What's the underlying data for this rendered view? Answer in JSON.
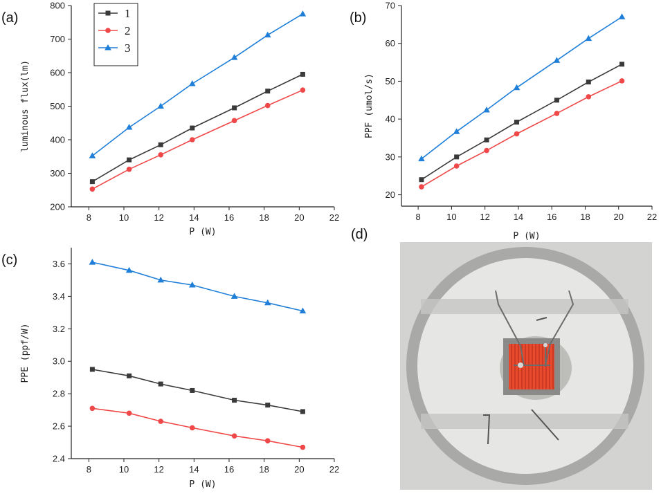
{
  "panel_labels": {
    "a": "(a)",
    "b": "(b)",
    "c": "(c)",
    "d": "(d)"
  },
  "colors": {
    "s1": "#3a3a3a",
    "s2": "#f04848",
    "s3": "#1f7fd8"
  },
  "chart_data": [
    {
      "id": "a",
      "type": "line",
      "title": "",
      "xlabel": "P (W)",
      "ylabel": "luminous flux(lm)",
      "xlim": [
        7,
        22
      ],
      "ylim": [
        200,
        800
      ],
      "xticks": [
        8,
        10,
        12,
        14,
        16,
        18,
        20,
        22
      ],
      "yticks": [
        200,
        300,
        400,
        500,
        600,
        700,
        800
      ],
      "x": [
        8.2,
        10.3,
        12.1,
        13.9,
        16.3,
        18.2,
        20.2
      ],
      "legend": {
        "position": "top-left",
        "entries": [
          "1",
          "2",
          "3"
        ]
      },
      "series": [
        {
          "name": "1",
          "marker": "square",
          "color": "#3a3a3a",
          "values": [
            275,
            340,
            385,
            435,
            495,
            545,
            595
          ]
        },
        {
          "name": "2",
          "marker": "circle",
          "color": "#f04848",
          "values": [
            253,
            312,
            355,
            400,
            457,
            502,
            548
          ]
        },
        {
          "name": "3",
          "marker": "triangle",
          "color": "#1f7fd8",
          "values": [
            352,
            437,
            500,
            567,
            645,
            712,
            775
          ]
        }
      ]
    },
    {
      "id": "b",
      "type": "line",
      "title": "",
      "xlabel": "P (W)",
      "ylabel": "PPF (umol/s)",
      "xlim": [
        7,
        22
      ],
      "ylim": [
        17,
        70
      ],
      "xticks": [
        8,
        10,
        12,
        14,
        16,
        18,
        20,
        22
      ],
      "yticks": [
        20,
        30,
        40,
        50,
        60,
        70
      ],
      "x": [
        8.2,
        10.3,
        12.1,
        13.9,
        16.3,
        18.2,
        20.2
      ],
      "series": [
        {
          "name": "1",
          "marker": "square",
          "color": "#3a3a3a",
          "values": [
            24.0,
            30.0,
            34.5,
            39.2,
            45.0,
            49.8,
            54.5
          ]
        },
        {
          "name": "2",
          "marker": "circle",
          "color": "#f04848",
          "values": [
            22.1,
            27.6,
            31.7,
            36.1,
            41.5,
            45.9,
            50.1
          ]
        },
        {
          "name": "3",
          "marker": "triangle",
          "color": "#1f7fd8",
          "values": [
            29.5,
            36.7,
            42.4,
            48.3,
            55.5,
            61.3,
            67.0
          ]
        }
      ]
    },
    {
      "id": "c",
      "type": "line",
      "title": "",
      "xlabel": "P (W)",
      "ylabel": "PPE (ppf/W)",
      "xlim": [
        7,
        22
      ],
      "ylim": [
        2.4,
        3.7
      ],
      "xticks": [
        8,
        10,
        12,
        14,
        16,
        18,
        20,
        22
      ],
      "yticks": [
        2.4,
        2.6,
        2.8,
        3.0,
        3.2,
        3.4,
        3.6
      ],
      "x": [
        8.2,
        10.3,
        12.1,
        13.9,
        16.3,
        18.2,
        20.2
      ],
      "series": [
        {
          "name": "1",
          "marker": "square",
          "color": "#3a3a3a",
          "values": [
            2.95,
            2.91,
            2.86,
            2.82,
            2.76,
            2.73,
            2.69
          ]
        },
        {
          "name": "2",
          "marker": "circle",
          "color": "#f04848",
          "values": [
            2.71,
            2.68,
            2.63,
            2.59,
            2.54,
            2.51,
            2.47
          ]
        },
        {
          "name": "3",
          "marker": "triangle",
          "color": "#1f7fd8",
          "values": [
            3.61,
            3.56,
            3.5,
            3.47,
            3.4,
            3.36,
            3.31
          ]
        }
      ]
    }
  ]
}
